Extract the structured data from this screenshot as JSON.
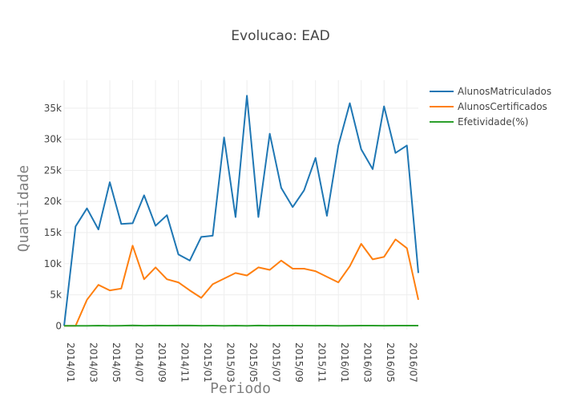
{
  "chart_data": {
    "type": "line",
    "title": "Evolucao: EAD",
    "xlabel": "Periodo",
    "ylabel": "Quantidade",
    "x": [
      "2014/01",
      "2014/02",
      "2014/03",
      "2014/04",
      "2014/05",
      "2014/06",
      "2014/07",
      "2014/08",
      "2014/09",
      "2014/10",
      "2014/11",
      "2014/12",
      "2015/01",
      "2015/02",
      "2015/03",
      "2015/04",
      "2015/05",
      "2015/06",
      "2015/07",
      "2015/08",
      "2015/09",
      "2015/10",
      "2015/11",
      "2015/12",
      "2016/01",
      "2016/02",
      "2016/03",
      "2016/04",
      "2016/05",
      "2016/06",
      "2016/07",
      "2016/08"
    ],
    "x_tick_labels": [
      "2014/01",
      "2014/03",
      "2014/05",
      "2014/07",
      "2014/09",
      "2014/11",
      "2015/01",
      "2015/03",
      "2015/05",
      "2015/07",
      "2015/09",
      "2015/11",
      "2016/01",
      "2016/03",
      "2016/05",
      "2016/07"
    ],
    "ylim": [
      -600,
      39500
    ],
    "y_ticks": [
      0,
      5000,
      10000,
      15000,
      20000,
      25000,
      30000,
      35000
    ],
    "y_tick_labels": [
      "0",
      "5k",
      "10k",
      "15k",
      "20k",
      "25k",
      "30k",
      "35k"
    ],
    "grid": true,
    "legend_position": "top-right",
    "series": [
      {
        "name": "AlunosMatriculados",
        "color": "#1f77b4",
        "values": [
          0,
          16000,
          18900,
          15500,
          23100,
          16400,
          16500,
          21000,
          16100,
          17800,
          11500,
          10500,
          14300,
          14500,
          30300,
          17500,
          37000,
          17500,
          30900,
          22200,
          19100,
          21800,
          27000,
          17700,
          29000,
          35800,
          28400,
          25200,
          35300,
          27800,
          29000,
          8500
        ]
      },
      {
        "name": "AlunosCertificados",
        "color": "#ff7f0e",
        "values": [
          0,
          0,
          4200,
          6600,
          5700,
          6000,
          12900,
          7500,
          9400,
          7500,
          7000,
          5700,
          4500,
          6700,
          7600,
          8500,
          8100,
          9400,
          9000,
          10500,
          9200,
          9200,
          8800,
          7900,
          7000,
          9600,
          13200,
          10700,
          11100,
          13900,
          12500,
          4200
        ]
      },
      {
        "name": "Efetividade(%)",
        "color": "#2ca02c",
        "values": [
          0,
          0,
          22,
          43,
          25,
          37,
          78,
          36,
          58,
          42,
          61,
          54,
          31,
          46,
          25,
          49,
          22,
          54,
          29,
          47,
          48,
          42,
          33,
          45,
          24,
          27,
          46,
          42,
          31,
          50,
          43,
          49
        ]
      }
    ]
  }
}
